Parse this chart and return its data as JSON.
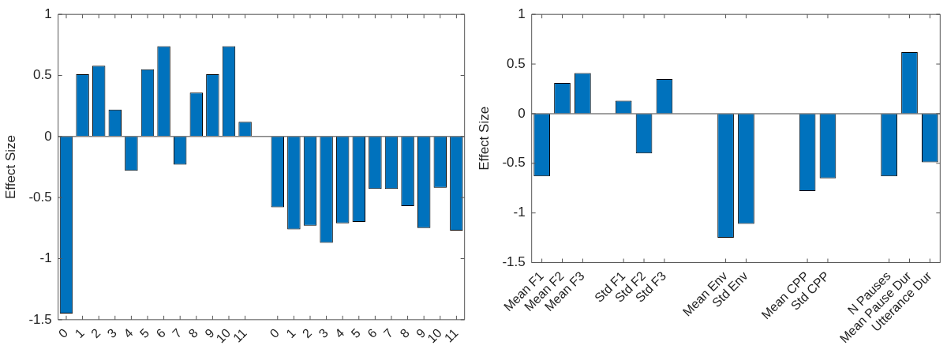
{
  "chart_data": [
    {
      "type": "bar",
      "ylabel": "Effect Size",
      "categories": [
        "0",
        "1",
        "2",
        "3",
        "4",
        "5",
        "6",
        "7",
        "8",
        "9",
        "10",
        "11",
        null,
        "0",
        "1",
        "2",
        "3",
        "4",
        "5",
        "6",
        "7",
        "8",
        "9",
        "10",
        "11"
      ],
      "values": [
        -1.45,
        0.51,
        0.58,
        0.22,
        -0.28,
        0.55,
        0.74,
        -0.23,
        0.36,
        0.51,
        0.74,
        0.12,
        null,
        -0.58,
        -0.76,
        -0.73,
        -0.87,
        -0.71,
        -0.7,
        -0.43,
        -0.43,
        -0.57,
        -0.75,
        -0.42,
        -0.77
      ],
      "color": "#0072bd",
      "ylim": [
        -1.5,
        1
      ],
      "yticks": [
        -1.5,
        -1,
        -0.5,
        0,
        0.5,
        1
      ],
      "grid": false,
      "legend": false,
      "ref_lines": [
        {
          "axis": "y",
          "value": 0,
          "color": "#808080"
        }
      ]
    },
    {
      "type": "bar",
      "ylabel": "Effect Size",
      "categories": [
        "Mean F1",
        "Mean F2",
        "Mean F3",
        null,
        "Std F1",
        "Std F2",
        "Std F3",
        null,
        null,
        "Mean Env",
        "Std Env",
        null,
        null,
        "Mean CPP",
        "Std CPP",
        null,
        null,
        "N Pauses",
        "Mean Pause Dur",
        "Utterance Dur"
      ],
      "values": [
        -0.63,
        0.31,
        0.41,
        null,
        0.13,
        -0.4,
        0.35,
        null,
        null,
        -1.25,
        -1.11,
        null,
        null,
        -0.78,
        -0.65,
        null,
        null,
        -0.63,
        0.62,
        -0.49
      ],
      "color": "#0072bd",
      "ylim": [
        -1.5,
        1
      ],
      "yticks": [
        -1.5,
        -1,
        -0.5,
        0,
        0.5,
        1
      ],
      "grid": false,
      "legend": false,
      "ref_lines": [
        {
          "axis": "y",
          "value": 0,
          "color": "#808080"
        }
      ]
    }
  ]
}
